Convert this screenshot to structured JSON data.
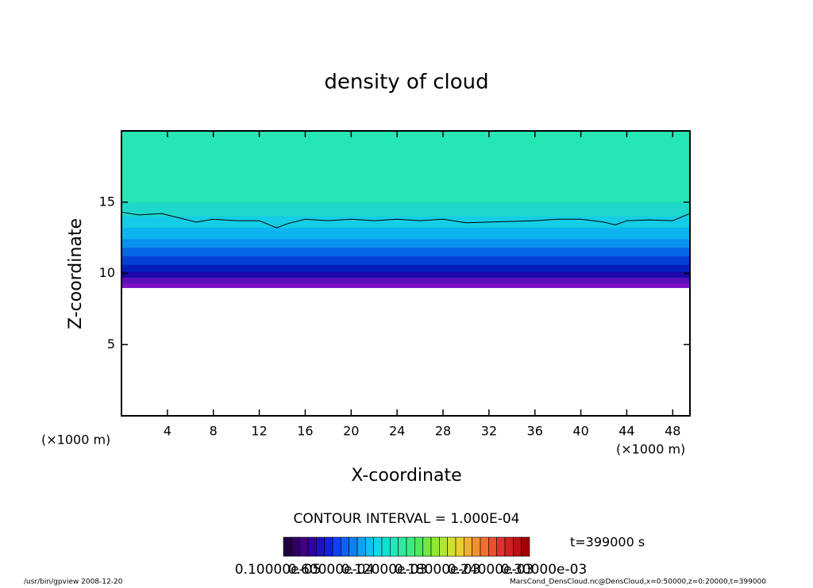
{
  "chart_data": {
    "type": "contour",
    "title": "density of cloud",
    "x_label": "X-coordinate",
    "y_label": "Z-coordinate",
    "x_unit": "(×1000 m)",
    "y_unit": "(×1000 m)",
    "xlim": [
      0,
      49.5
    ],
    "ylim": [
      0,
      20
    ],
    "xticks": [
      4,
      8,
      12,
      16,
      20,
      24,
      28,
      32,
      36,
      40,
      44,
      48
    ],
    "yticks": [
      5,
      10,
      15
    ],
    "bands": [
      {
        "z": [
          15,
          20
        ],
        "color": "#26e6b4"
      },
      {
        "z": [
          14,
          15
        ],
        "color": "#1fd8cc"
      },
      {
        "z": [
          13.2,
          14
        ],
        "color": "#14cce6"
      },
      {
        "z": [
          12.4,
          13.2
        ],
        "color": "#0cb4f0"
      },
      {
        "z": [
          11.8,
          12.4
        ],
        "color": "#0a90ee"
      },
      {
        "z": [
          11.2,
          11.8
        ],
        "color": "#0666e6"
      },
      {
        "z": [
          10.6,
          11.2
        ],
        "color": "#0440d6"
      },
      {
        "z": [
          10.1,
          10.6
        ],
        "color": "#0420bc"
      },
      {
        "z": [
          9.7,
          10.1
        ],
        "color": "#1808a8"
      },
      {
        "z": [
          9.3,
          9.7
        ],
        "color": "#5a10b8"
      },
      {
        "z": [
          9.0,
          9.3
        ],
        "color": "#7a10c8"
      }
    ],
    "contour_line": {
      "x": [
        0,
        1.5,
        3.5,
        5,
        6.5,
        8,
        10,
        12,
        13.5,
        14.5,
        16,
        18,
        20,
        22,
        24,
        26,
        28,
        30,
        32,
        34,
        36,
        38,
        40,
        42,
        43,
        44,
        46,
        48,
        49.5
      ],
      "y": [
        14.3,
        14.1,
        14.2,
        13.9,
        13.6,
        13.8,
        13.7,
        13.7,
        13.2,
        13.5,
        13.8,
        13.7,
        13.8,
        13.7,
        13.8,
        13.7,
        13.8,
        13.55,
        13.6,
        13.65,
        13.7,
        13.8,
        13.8,
        13.6,
        13.4,
        13.7,
        13.75,
        13.7,
        14.2
      ]
    },
    "contour_interval": "CONTOUR INTERVAL = 1.000E-04",
    "time_label": "t=399000 s",
    "colorbar_colors": [
      "#200040",
      "#300060",
      "#400080",
      "#3000a0",
      "#2010c0",
      "#1020e0",
      "#1040f0",
      "#1060f0",
      "#1080f0",
      "#10a0f0",
      "#10c0f0",
      "#10d8e8",
      "#10e0d0",
      "#20e8b8",
      "#30e8a0",
      "#40e880",
      "#50e860",
      "#70e840",
      "#90e830",
      "#b0e830",
      "#d0e030",
      "#e8d030",
      "#f0b030",
      "#f09030",
      "#f07030",
      "#e85030",
      "#e03030",
      "#d02020",
      "#c01010",
      "#a00000"
    ],
    "colorbar_labels": [
      "0.10000e-05",
      "0.60000e-04",
      "0.12000e-03",
      "0.18000e-03",
      "0.24000e-03",
      "0.30000e-03"
    ],
    "footer_left": "/usr/bin/gpview  2008-12-20",
    "footer_right": "MarsCond_DensCloud.nc@DensCloud,x=0:50000,z=0:20000,t=399000"
  }
}
